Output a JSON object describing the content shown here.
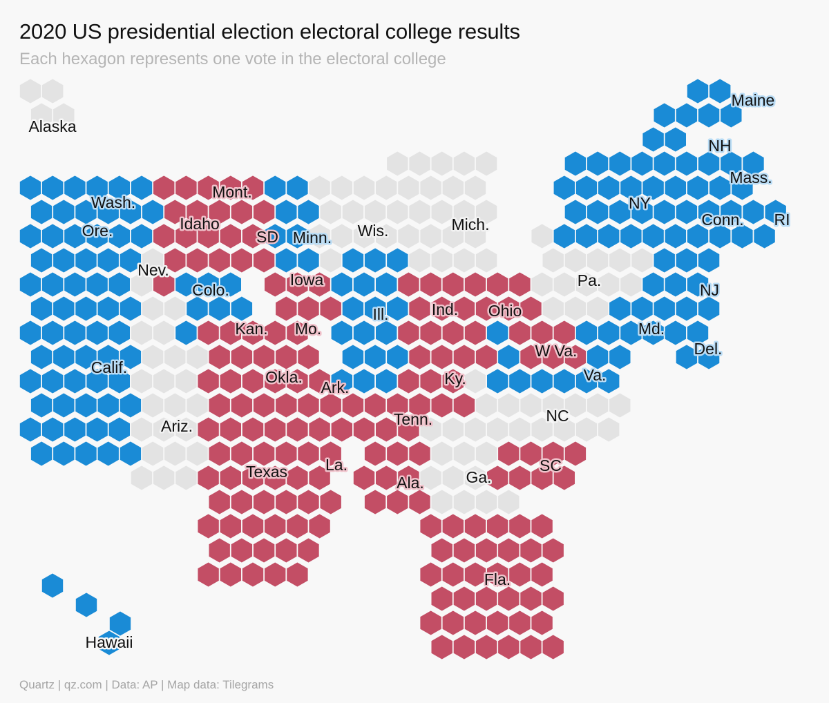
{
  "header": {
    "title": "2020 US presidential election electoral college results",
    "subtitle": "Each hexagon represents one vote in the electoral college"
  },
  "footer": {
    "source": "Quartz | qz.com | Data: AP | Map data: Tilegrams"
  },
  "colors": {
    "biden": "#1a8bd6",
    "trump": "#c34e65",
    "uncalled": "#e3e3e3",
    "background": "#f8f8f8"
  },
  "states": [
    {
      "label": "Alaska",
      "status": "uncalled"
    },
    {
      "label": "Hawaii",
      "status": "biden"
    },
    {
      "label": "Wash.",
      "status": "biden"
    },
    {
      "label": "Ore.",
      "status": "biden"
    },
    {
      "label": "Calif.",
      "status": "biden"
    },
    {
      "label": "Nev.",
      "status": "uncalled"
    },
    {
      "label": "Idaho",
      "status": "trump"
    },
    {
      "label": "Mont.",
      "status": "trump"
    },
    {
      "label": "Colo.",
      "status": "biden"
    },
    {
      "label": "Ariz.",
      "status": "uncalled"
    },
    {
      "label": "SD",
      "status": "trump"
    },
    {
      "label": "Minn.",
      "status": "biden"
    },
    {
      "label": "Iowa",
      "status": "trump"
    },
    {
      "label": "Kan.",
      "status": "trump"
    },
    {
      "label": "Mo.",
      "status": "trump"
    },
    {
      "label": "Okla.",
      "status": "trump"
    },
    {
      "label": "Ark.",
      "status": "trump"
    },
    {
      "label": "Texas",
      "status": "trump"
    },
    {
      "label": "La.",
      "status": "trump"
    },
    {
      "label": "Wis.",
      "status": "uncalled"
    },
    {
      "label": "Mich.",
      "status": "uncalled"
    },
    {
      "label": "Ill.",
      "status": "biden"
    },
    {
      "label": "Ind.",
      "status": "trump"
    },
    {
      "label": "Ohio",
      "status": "trump"
    },
    {
      "label": "Ky.",
      "status": "trump"
    },
    {
      "label": "Tenn.",
      "status": "trump"
    },
    {
      "label": "Ala.",
      "status": "trump"
    },
    {
      "label": "Ga.",
      "status": "uncalled"
    },
    {
      "label": "Fla.",
      "status": "trump"
    },
    {
      "label": "SC",
      "status": "trump"
    },
    {
      "label": "NC",
      "status": "uncalled"
    },
    {
      "label": "Va.",
      "status": "biden"
    },
    {
      "label": "W Va.",
      "status": "trump"
    },
    {
      "label": "Pa.",
      "status": "uncalled"
    },
    {
      "label": "Md.",
      "status": "biden"
    },
    {
      "label": "Del.",
      "status": "biden"
    },
    {
      "label": "NJ",
      "status": "biden"
    },
    {
      "label": "NY",
      "status": "biden"
    },
    {
      "label": "Conn.",
      "status": "biden"
    },
    {
      "label": "RI",
      "status": "biden"
    },
    {
      "label": "Mass.",
      "status": "biden"
    },
    {
      "label": "NH",
      "status": "biden"
    },
    {
      "label": "Maine",
      "status": "biden"
    }
  ]
}
